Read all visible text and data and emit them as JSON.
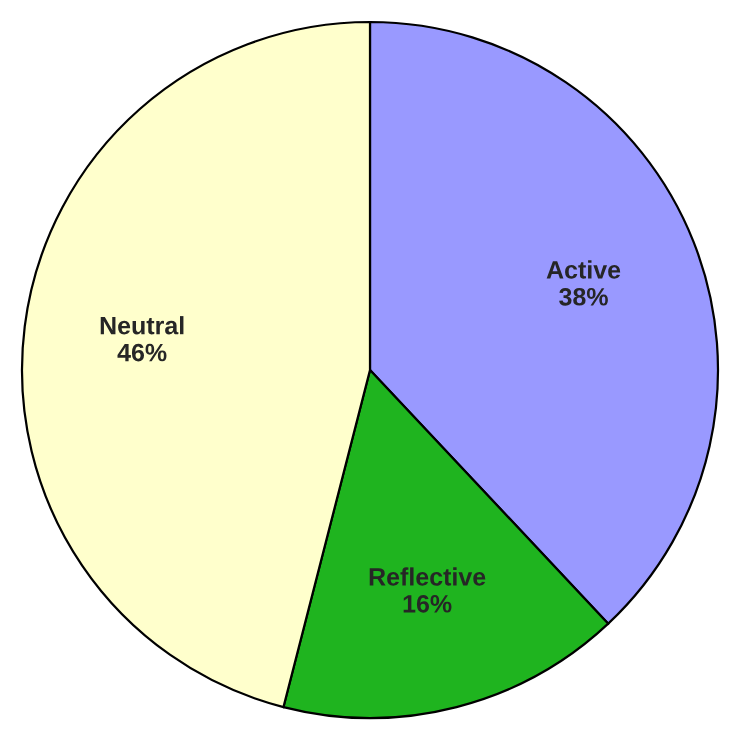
{
  "chart_data": {
    "type": "pie",
    "categories": [
      "Active",
      "Reflective",
      "Neutral"
    ],
    "values": [
      38,
      16,
      46
    ],
    "value_labels": [
      "38%",
      "16%",
      "46%"
    ],
    "colors": [
      "#9999ff",
      "#1fb41f",
      "#ffffcc"
    ],
    "legend": false
  }
}
